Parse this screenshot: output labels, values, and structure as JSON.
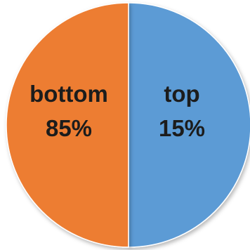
{
  "chart_data": {
    "type": "pie",
    "slices": [
      {
        "label": "top",
        "value": 15,
        "display": "15%",
        "color": "#5b9bd5"
      },
      {
        "label": "bottom",
        "value": 85,
        "display": "85%",
        "color": "#ed7d31"
      }
    ],
    "data_labels": "inside",
    "legend": "none",
    "title": ""
  }
}
